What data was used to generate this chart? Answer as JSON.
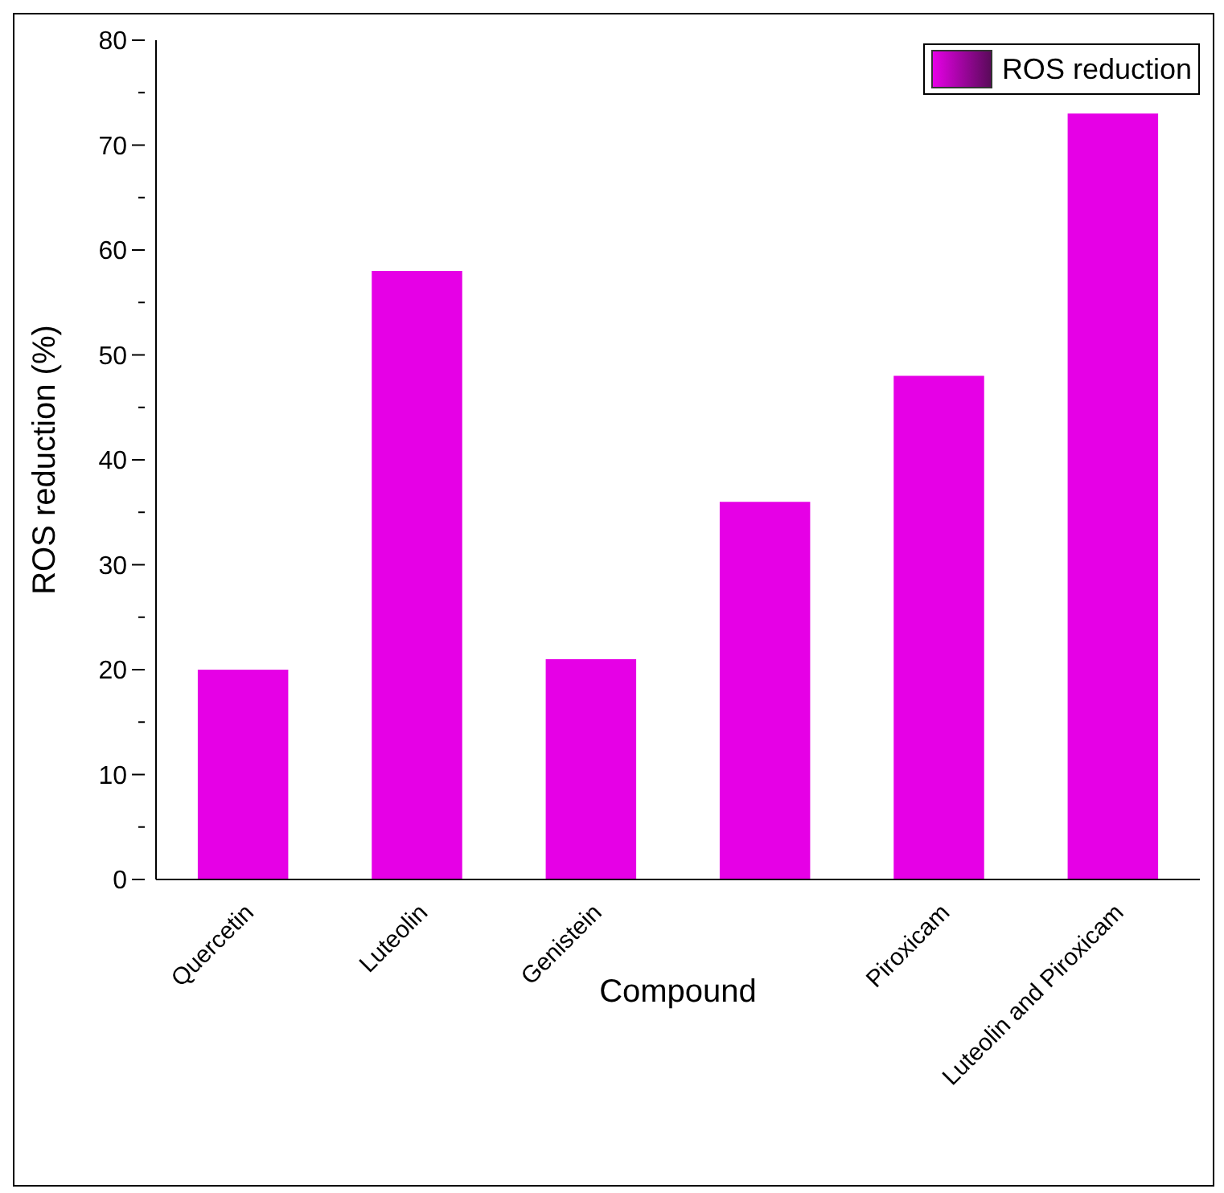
{
  "chart_data": {
    "type": "bar",
    "categories": [
      "Quercetin",
      "Luteolin",
      "Genistein",
      null,
      "Piroxicam",
      "Luteolin and Piroxicam"
    ],
    "series": [
      {
        "name": "ROS reduction",
        "color": "#e600e6",
        "values": [
          20,
          58,
          21,
          36,
          48,
          73
        ]
      }
    ],
    "xlabel": "Compound",
    "ylabel": "ROS reduction (%)",
    "ylim": [
      0,
      80
    ],
    "yticks": [
      0,
      {
        "value": 5,
        "label": null
      },
      10,
      {
        "value": 15,
        "label": null
      },
      20,
      {
        "value": 25,
        "label": null
      },
      30,
      {
        "value": 35,
        "label": null
      },
      40,
      {
        "value": 45,
        "label": null
      },
      50,
      {
        "value": 55,
        "label": null
      },
      60,
      {
        "value": 65,
        "label": null
      },
      70,
      {
        "value": 75,
        "label": null
      },
      80
    ],
    "grid": false,
    "legend": "top right"
  }
}
